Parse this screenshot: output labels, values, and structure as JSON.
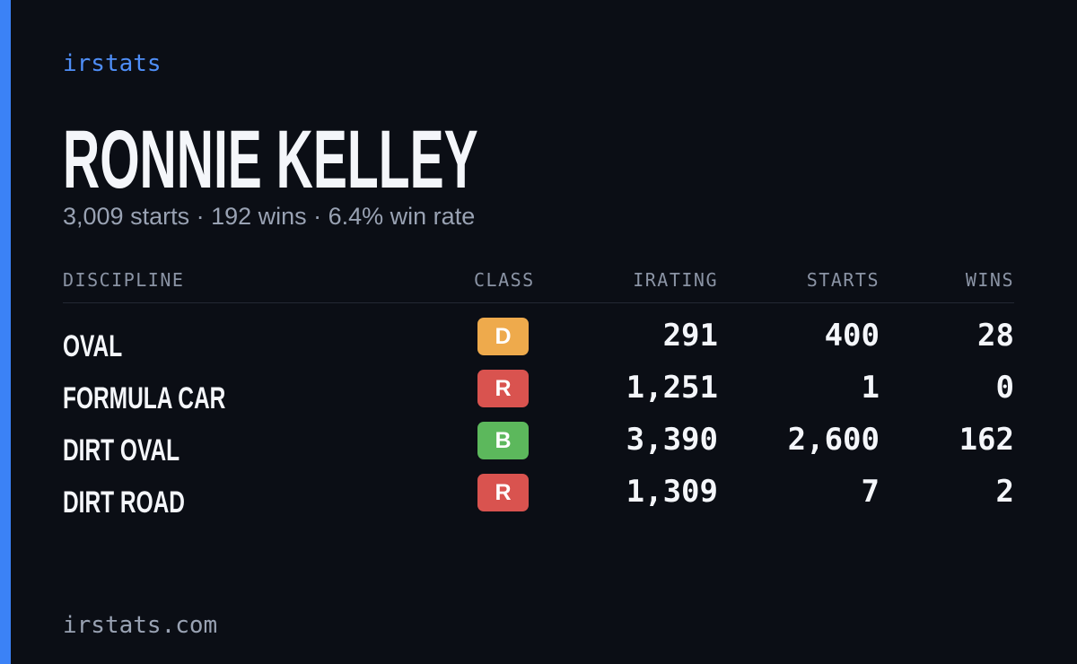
{
  "header": {
    "brand": "irstats",
    "title": "RONNIE KELLEY",
    "subtitle": "3,009 starts · 192 wins · 6.4% win rate"
  },
  "table": {
    "columns": [
      "DISCIPLINE",
      "CLASS",
      "IRATING",
      "STARTS",
      "WINS"
    ],
    "rows": [
      [
        "OVAL",
        "D",
        "291",
        "400",
        "28"
      ],
      [
        "FORMULA CAR",
        "R",
        "1,251",
        "1",
        "0"
      ],
      [
        "DIRT OVAL",
        "B",
        "3,390",
        "2,600",
        "162"
      ],
      [
        "DIRT ROAD",
        "R",
        "1,309",
        "7",
        "2"
      ]
    ],
    "class_colors": {
      "D": "#eeaa4c",
      "R": "#d9534f",
      "B": "#5cb85c"
    }
  },
  "footer": {
    "url": "irstats.com"
  }
}
